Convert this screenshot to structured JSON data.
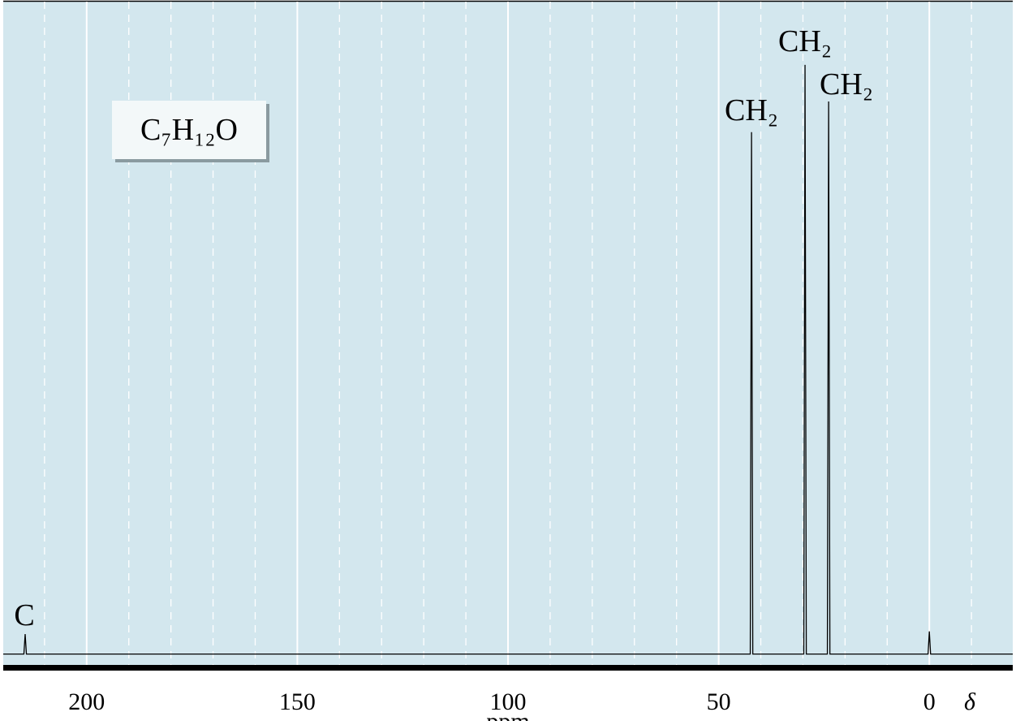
{
  "chart_data": {
    "type": "line",
    "formula": "C₇H₁₂O",
    "x_label": "ppm",
    "axis_symbol": "δ",
    "x": [
      219.8,
      214.9,
      214.6,
      214.3,
      42.5,
      42.2,
      41.9,
      29.8,
      29.5,
      29.2,
      24.2,
      23.9,
      23.6,
      0.3,
      0,
      -0.3,
      -19.8
    ],
    "series": [
      {
        "color": "#000000",
        "values": [
          2,
          2,
          5,
          2,
          2,
          80.4,
          2,
          2,
          90.5,
          2,
          2,
          85,
          2,
          2,
          5.4,
          2,
          2
        ]
      }
    ],
    "annotations": [
      "C",
      "CH₂",
      "CH₂",
      "CH₂"
    ],
    "xlim": [
      219.8,
      -19.8
    ],
    "ylim": [
      0,
      100
    ],
    "xticks": [
      200,
      150,
      100,
      50,
      0
    ],
    "minor_xticks": [
      210,
      190,
      180,
      170,
      160,
      140,
      130,
      120,
      110,
      90,
      80,
      70,
      60,
      40,
      30,
      20,
      10,
      -10
    ],
    "grid": true
  }
}
